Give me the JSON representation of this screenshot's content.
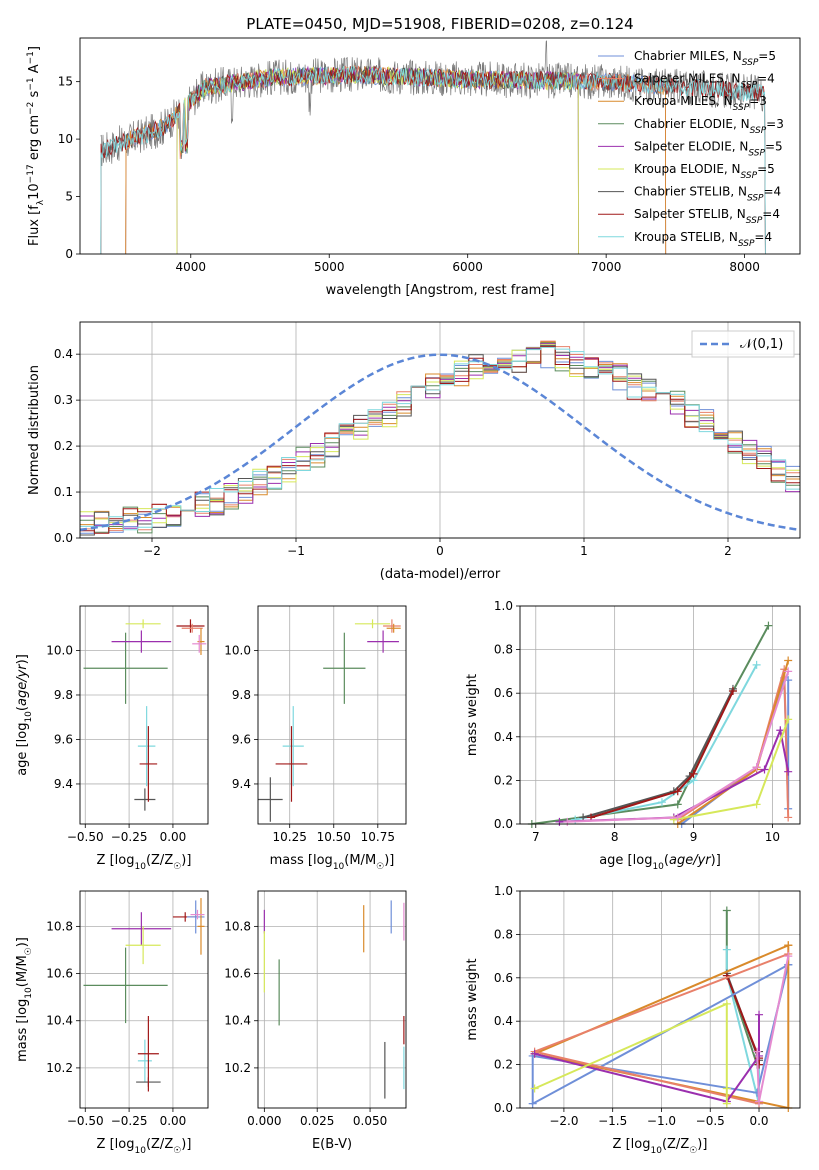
{
  "chart_data": [
    {
      "type": "line",
      "title": "PLATE=0450, MJD=51908, FIBERID=0208, z=0.124",
      "xlabel": "wavelength [Angstrom, rest frame]",
      "ylabel": "Flux [f_λ10^-17 erg cm^-2 s^-1 A^-1]",
      "xlim": [
        3200,
        8400
      ],
      "ylim": [
        0,
        18.8
      ],
      "xticks": [
        "4000",
        "5000",
        "6000",
        "7000",
        "8000"
      ],
      "yticks": [
        "0",
        "5",
        "10",
        "15"
      ],
      "grid": false,
      "legend_position": "top-right",
      "legend": [
        {
          "label": "Chabrier MILES, N_SSP=5",
          "color": "#6f8fd8"
        },
        {
          "label": "Salpeter MILES, N_SSP=4",
          "color": "#e8806a"
        },
        {
          "label": "Kroupa MILES, N_SSP=3",
          "color": "#d98a2b"
        },
        {
          "label": "Chabrier ELODIE, N_SSP=3",
          "color": "#5b8c5e"
        },
        {
          "label": "Salpeter ELODIE, N_SSP=5",
          "color": "#9b2fae"
        },
        {
          "label": "Kroupa ELODIE, N_SSP=5",
          "color": "#d6e85a"
        },
        {
          "label": "Chabrier STELIB, N_SSP=4",
          "color": "#555555"
        },
        {
          "label": "Salpeter STELIB, N_SSP=4",
          "color": "#a01818"
        },
        {
          "label": "Kroupa STELIB, N_SSP=4",
          "color": "#7fd8de"
        }
      ],
      "data_spectrum": {
        "x_range": [
          3350,
          8150
        ],
        "approx_level": [
          [
            3350,
            9
          ],
          [
            3800,
            11
          ],
          [
            4100,
            14.5
          ],
          [
            4600,
            15.4
          ],
          [
            5200,
            15.6
          ],
          [
            6000,
            15.2
          ],
          [
            7000,
            15.0
          ],
          [
            8150,
            14.0
          ]
        ]
      },
      "series": [
        {
          "name": "Chabrier MILES, N_SSP=5",
          "x_range": [
            3530,
            7430
          ],
          "color": "#6f8fd8"
        },
        {
          "name": "Salpeter MILES, N_SSP=4",
          "x_range": [
            3530,
            7430
          ],
          "color": "#e8806a"
        },
        {
          "name": "Kroupa MILES, N_SSP=3",
          "x_range": [
            3530,
            7430
          ],
          "color": "#d98a2b"
        },
        {
          "name": "Chabrier ELODIE, N_SSP=3",
          "x_range": [
            3900,
            6800
          ],
          "color": "#5b8c5e"
        },
        {
          "name": "Salpeter ELODIE, N_SSP=5",
          "x_range": [
            3900,
            6800
          ],
          "color": "#9b2fae"
        },
        {
          "name": "Kroupa ELODIE, N_SSP=5",
          "x_range": [
            3900,
            6800
          ],
          "color": "#d6e85a"
        },
        {
          "name": "Chabrier STELIB, N_SSP=4",
          "x_range": [
            3350,
            8150
          ],
          "color": "#555555"
        },
        {
          "name": "Salpeter STELIB, N_SSP=4",
          "x_range": [
            3350,
            8150
          ],
          "color": "#a01818"
        },
        {
          "name": "Kroupa STELIB, N_SSP=4",
          "x_range": [
            3350,
            8150
          ],
          "color": "#7fd8de"
        }
      ]
    },
    {
      "type": "bar",
      "title": "",
      "xlabel": "(data-model)/error",
      "ylabel": "Normed distribution",
      "xlim": [
        -2.5,
        2.5
      ],
      "ylim": [
        0,
        0.47
      ],
      "xticks": [
        "−2",
        "−1",
        "0",
        "1",
        "2"
      ],
      "yticks": [
        "0.0",
        "0.1",
        "0.2",
        "0.3",
        "0.4"
      ],
      "grid": true,
      "legend_position": "top-right",
      "legend": [
        {
          "label": "𝒩(0,1)",
          "color": "#5b86d6",
          "style": "dashed"
        }
      ],
      "bins": {
        "start": -2.5,
        "width": 0.1,
        "count": 50
      },
      "base_histogram": [
        0.03,
        0.03,
        0.03,
        0.04,
        0.04,
        0.05,
        0.05,
        0.06,
        0.07,
        0.08,
        0.09,
        0.1,
        0.12,
        0.13,
        0.15,
        0.17,
        0.18,
        0.2,
        0.22,
        0.24,
        0.25,
        0.27,
        0.29,
        0.31,
        0.33,
        0.34,
        0.36,
        0.37,
        0.37,
        0.38,
        0.39,
        0.4,
        0.4,
        0.39,
        0.38,
        0.37,
        0.36,
        0.35,
        0.33,
        0.32,
        0.3,
        0.29,
        0.27,
        0.25,
        0.23,
        0.21,
        0.19,
        0.17,
        0.15,
        0.13
      ],
      "series_colors": [
        "#6f8fd8",
        "#e8806a",
        "#d98a2b",
        "#5b8c5e",
        "#9b2fae",
        "#d6e85a",
        "#555555",
        "#a01818",
        "#7fd8de"
      ],
      "normal_curve": {
        "mean": 0,
        "sigma": 1
      }
    },
    {
      "type": "scatter",
      "title": "",
      "xlabel": "Z [log10(Z/Z☉)]",
      "ylabel": "age  [log10(age/yr)]",
      "xlim": [
        -0.53,
        0.2
      ],
      "ylim": [
        9.22,
        10.2
      ],
      "xticks": [
        "−0.50",
        "−0.25",
        "0.00"
      ],
      "yticks": [
        "9.4",
        "9.6",
        "9.8",
        "10.0"
      ],
      "grid": true,
      "points": [
        {
          "x": -0.27,
          "y": 9.92,
          "xerr": 0.24,
          "yerr": 0.16,
          "color": "#5b8c5e"
        },
        {
          "x": -0.18,
          "y": 10.04,
          "xerr": 0.17,
          "yerr": 0.05,
          "color": "#9b2fae"
        },
        {
          "x": -0.17,
          "y": 10.12,
          "xerr": 0.1,
          "yerr": 0.02,
          "color": "#d6e85a"
        },
        {
          "x": -0.15,
          "y": 9.57,
          "xerr": 0.05,
          "yerr": 0.18,
          "color": "#7fd8de"
        },
        {
          "x": -0.16,
          "y": 9.33,
          "xerr": 0.06,
          "yerr": 0.05,
          "color": "#555555"
        },
        {
          "x": -0.14,
          "y": 9.49,
          "xerr": 0.05,
          "yerr": 0.17,
          "color": "#a01818"
        },
        {
          "x": 0.1,
          "y": 10.11,
          "xerr": 0.08,
          "yerr": 0.03,
          "color": "#a01818"
        },
        {
          "x": 0.11,
          "y": 10.1,
          "xerr": 0.06,
          "yerr": 0.02,
          "color": "#e8806a"
        },
        {
          "x": 0.16,
          "y": 10.04,
          "xerr": 0.02,
          "yerr": 0.06,
          "color": "#d98a2b"
        },
        {
          "x": 0.15,
          "y": 10.03,
          "xerr": 0.04,
          "yerr": 0.04,
          "color": "#e58bd0"
        }
      ]
    },
    {
      "type": "scatter",
      "title": "",
      "xlabel": "mass [log10(M/M☉)]",
      "ylabel": "",
      "xlim": [
        10.07,
        10.91
      ],
      "ylim": [
        9.22,
        10.2
      ],
      "xticks": [
        "10.25",
        "10.50",
        "10.75"
      ],
      "yticks": [
        "9.4",
        "9.6",
        "9.8",
        "10.0"
      ],
      "grid": true,
      "points": [
        {
          "x": 10.56,
          "y": 9.92,
          "xerr": 0.12,
          "yerr": 0.16,
          "color": "#5b8c5e"
        },
        {
          "x": 10.78,
          "y": 10.04,
          "xerr": 0.09,
          "yerr": 0.05,
          "color": "#9b2fae"
        },
        {
          "x": 10.72,
          "y": 10.12,
          "xerr": 0.1,
          "yerr": 0.02,
          "color": "#d6e85a"
        },
        {
          "x": 10.27,
          "y": 9.57,
          "xerr": 0.06,
          "yerr": 0.18,
          "color": "#7fd8de"
        },
        {
          "x": 10.14,
          "y": 9.33,
          "xerr": 0.07,
          "yerr": 0.1,
          "color": "#555555"
        },
        {
          "x": 10.26,
          "y": 9.49,
          "xerr": 0.09,
          "yerr": 0.17,
          "color": "#a01818"
        },
        {
          "x": 10.83,
          "y": 10.11,
          "xerr": 0.05,
          "yerr": 0.03,
          "color": "#e8806a"
        },
        {
          "x": 10.84,
          "y": 10.1,
          "xerr": 0.04,
          "yerr": 0.02,
          "color": "#d98a2b"
        }
      ]
    },
    {
      "type": "line",
      "title": "",
      "xlabel": "age  [log10(age/yr)]",
      "ylabel": "mass weight",
      "xlim": [
        6.8,
        10.35
      ],
      "ylim": [
        0,
        1.0
      ],
      "xticks": [
        "7",
        "8",
        "9",
        "10"
      ],
      "yticks": [
        "0.0",
        "0.2",
        "0.4",
        "0.6",
        "0.8",
        "1.0"
      ],
      "grid": true,
      "series": [
        {
          "color": "#5b8c5e",
          "x": [
            6.95,
            8.8,
            9.5,
            9.95
          ],
          "y": [
            0.0,
            0.09,
            0.61,
            0.91
          ]
        },
        {
          "color": "#7fd8de",
          "x": [
            7.5,
            8.6,
            9.0,
            9.8
          ],
          "y": [
            0.02,
            0.1,
            0.2,
            0.73
          ]
        },
        {
          "color": "#555555",
          "x": [
            7.6,
            8.75,
            8.95,
            9.5
          ],
          "y": [
            0.03,
            0.15,
            0.22,
            0.62
          ]
        },
        {
          "color": "#a01818",
          "x": [
            7.7,
            8.8,
            9.0,
            9.5
          ],
          "y": [
            0.03,
            0.15,
            0.23,
            0.61
          ]
        },
        {
          "color": "#6f8fd8",
          "x": [
            8.85,
            9.8,
            10.15,
            10.2,
            10.2
          ],
          "y": [
            0.0,
            0.26,
            0.67,
            0.07,
            0.66
          ]
        },
        {
          "color": "#e8806a",
          "x": [
            8.8,
            9.8,
            10.15,
            10.2
          ],
          "y": [
            0.02,
            0.26,
            0.71,
            0.03
          ]
        },
        {
          "color": "#d98a2b",
          "x": [
            8.8,
            9.8,
            10.2
          ],
          "y": [
            0.0,
            0.25,
            0.75
          ]
        },
        {
          "color": "#9b2fae",
          "x": [
            7.3,
            8.75,
            9.9,
            10.1,
            10.2
          ],
          "y": [
            0.01,
            0.03,
            0.25,
            0.43,
            0.24
          ]
        },
        {
          "color": "#d6e85a",
          "x": [
            8.75,
            9.8,
            10.2
          ],
          "y": [
            0.02,
            0.09,
            0.48
          ]
        },
        {
          "color": "#e58bd0",
          "x": [
            7.4,
            8.8,
            9.8,
            10.2
          ],
          "y": [
            0.01,
            0.03,
            0.26,
            0.7
          ]
        }
      ]
    },
    {
      "type": "scatter",
      "title": "",
      "xlabel": "Z [log10(Z/Z☉)]",
      "ylabel": "mass [log10(M/M☉)]",
      "xlim": [
        -0.53,
        0.2
      ],
      "ylim": [
        10.03,
        10.95
      ],
      "xticks": [
        "−0.50",
        "−0.25",
        "0.00"
      ],
      "yticks": [
        "10.2",
        "10.4",
        "10.6",
        "10.8"
      ],
      "grid": true,
      "points": [
        {
          "x": -0.27,
          "y": 10.55,
          "xerr": 0.24,
          "yerr": 0.16,
          "color": "#5b8c5e"
        },
        {
          "x": -0.18,
          "y": 10.79,
          "xerr": 0.17,
          "yerr": 0.07,
          "color": "#9b2fae"
        },
        {
          "x": -0.17,
          "y": 10.72,
          "xerr": 0.1,
          "yerr": 0.08,
          "color": "#d6e85a"
        },
        {
          "x": -0.16,
          "y": 10.23,
          "xerr": 0.04,
          "yerr": 0.09,
          "color": "#7fd8de"
        },
        {
          "x": -0.14,
          "y": 10.14,
          "xerr": 0.07,
          "yerr": 0.02,
          "color": "#555555"
        },
        {
          "x": -0.14,
          "y": 10.26,
          "xerr": 0.06,
          "yerr": 0.16,
          "color": "#a01818"
        },
        {
          "x": 0.07,
          "y": 10.84,
          "xerr": 0.07,
          "yerr": 0.02,
          "color": "#a01818"
        },
        {
          "x": 0.13,
          "y": 10.84,
          "xerr": 0.05,
          "yerr": 0.07,
          "color": "#6f8fd8"
        },
        {
          "x": 0.16,
          "y": 10.8,
          "xerr": 0.02,
          "yerr": 0.12,
          "color": "#d98a2b"
        },
        {
          "x": 0.14,
          "y": 10.85,
          "xerr": 0.04,
          "yerr": 0.02,
          "color": "#e58bd0"
        }
      ]
    },
    {
      "type": "scatter",
      "title": "",
      "xlabel": "E(B-V)",
      "ylabel": "",
      "xlim": [
        -0.003,
        0.067
      ],
      "ylim": [
        10.03,
        10.95
      ],
      "xticks": [
        "0.000",
        "0.025",
        "0.050"
      ],
      "yticks": [
        "10.2",
        "10.4",
        "10.6",
        "10.8"
      ],
      "grid": true,
      "points": [
        {
          "x": 0.0,
          "y": 10.82,
          "yerr": 0.05,
          "color": "#9b2fae"
        },
        {
          "x": 0.0,
          "y": 10.65,
          "yerr": 0.13,
          "color": "#d6e85a"
        },
        {
          "x": 0.007,
          "y": 10.52,
          "yerr": 0.14,
          "color": "#5b8c5e"
        },
        {
          "x": 0.047,
          "y": 10.79,
          "yerr": 0.1,
          "color": "#d98a2b"
        },
        {
          "x": 0.057,
          "y": 10.19,
          "yerr": 0.12,
          "color": "#555555"
        },
        {
          "x": 0.06,
          "y": 10.84,
          "yerr": 0.07,
          "color": "#6f8fd8"
        },
        {
          "x": 0.066,
          "y": 10.36,
          "yerr": 0.06,
          "color": "#a01818"
        },
        {
          "x": 0.066,
          "y": 10.2,
          "yerr": 0.09,
          "color": "#7fd8de"
        },
        {
          "x": 0.066,
          "y": 10.82,
          "yerr": 0.08,
          "color": "#e58bd0"
        }
      ]
    },
    {
      "type": "line",
      "title": "",
      "xlabel": "Z [log10(Z/Z☉)]",
      "ylabel": "mass weight",
      "xlim": [
        -2.45,
        0.42
      ],
      "ylim": [
        0,
        1.0
      ],
      "xticks": [
        "−2.0",
        "−1.5",
        "−1.0",
        "−0.5",
        "0.0"
      ],
      "yticks": [
        "0.0",
        "0.2",
        "0.4",
        "0.6",
        "0.8",
        "1.0"
      ],
      "grid": true,
      "series": [
        {
          "color": "#5b8c5e",
          "x": [
            -0.33,
            -0.33,
            -0.02
          ],
          "y": [
            0.91,
            0.62,
            0.2
          ]
        },
        {
          "color": "#7fd8de",
          "x": [
            -0.33,
            -0.33,
            0.0,
            0.0
          ],
          "y": [
            0.73,
            0.62,
            0.02,
            0.2
          ]
        },
        {
          "color": "#555555",
          "x": [
            -0.33,
            0.0,
            0.0
          ],
          "y": [
            0.62,
            0.22,
            0.26
          ]
        },
        {
          "color": "#a01818",
          "x": [
            -0.33,
            0.0,
            0.0
          ],
          "y": [
            0.61,
            0.23,
            0.2
          ]
        },
        {
          "color": "#6f8fd8",
          "x": [
            0.3,
            -0.02,
            -2.32,
            -2.32,
            0.3
          ],
          "y": [
            0.66,
            0.07,
            0.24,
            0.02,
            0.66
          ]
        },
        {
          "color": "#d98a2b",
          "x": [
            0.3,
            -2.3,
            0.3,
            0.3
          ],
          "y": [
            0.75,
            0.25,
            0.0,
            0.75
          ]
        },
        {
          "color": "#e8806a",
          "x": [
            0.3,
            -2.3,
            0.0
          ],
          "y": [
            0.71,
            0.26,
            0.02
          ]
        },
        {
          "color": "#9b2fae",
          "x": [
            -2.3,
            -0.33,
            0.0,
            0.0
          ],
          "y": [
            0.25,
            0.03,
            0.24,
            0.43
          ]
        },
        {
          "color": "#d6e85a",
          "x": [
            -2.3,
            -0.33,
            -0.33,
            -0.33
          ],
          "y": [
            0.09,
            0.48,
            0.02,
            0.09
          ]
        },
        {
          "color": "#e58bd0",
          "x": [
            0.3,
            0.0,
            -0.02
          ],
          "y": [
            0.7,
            0.03,
            0.26
          ]
        }
      ]
    }
  ]
}
